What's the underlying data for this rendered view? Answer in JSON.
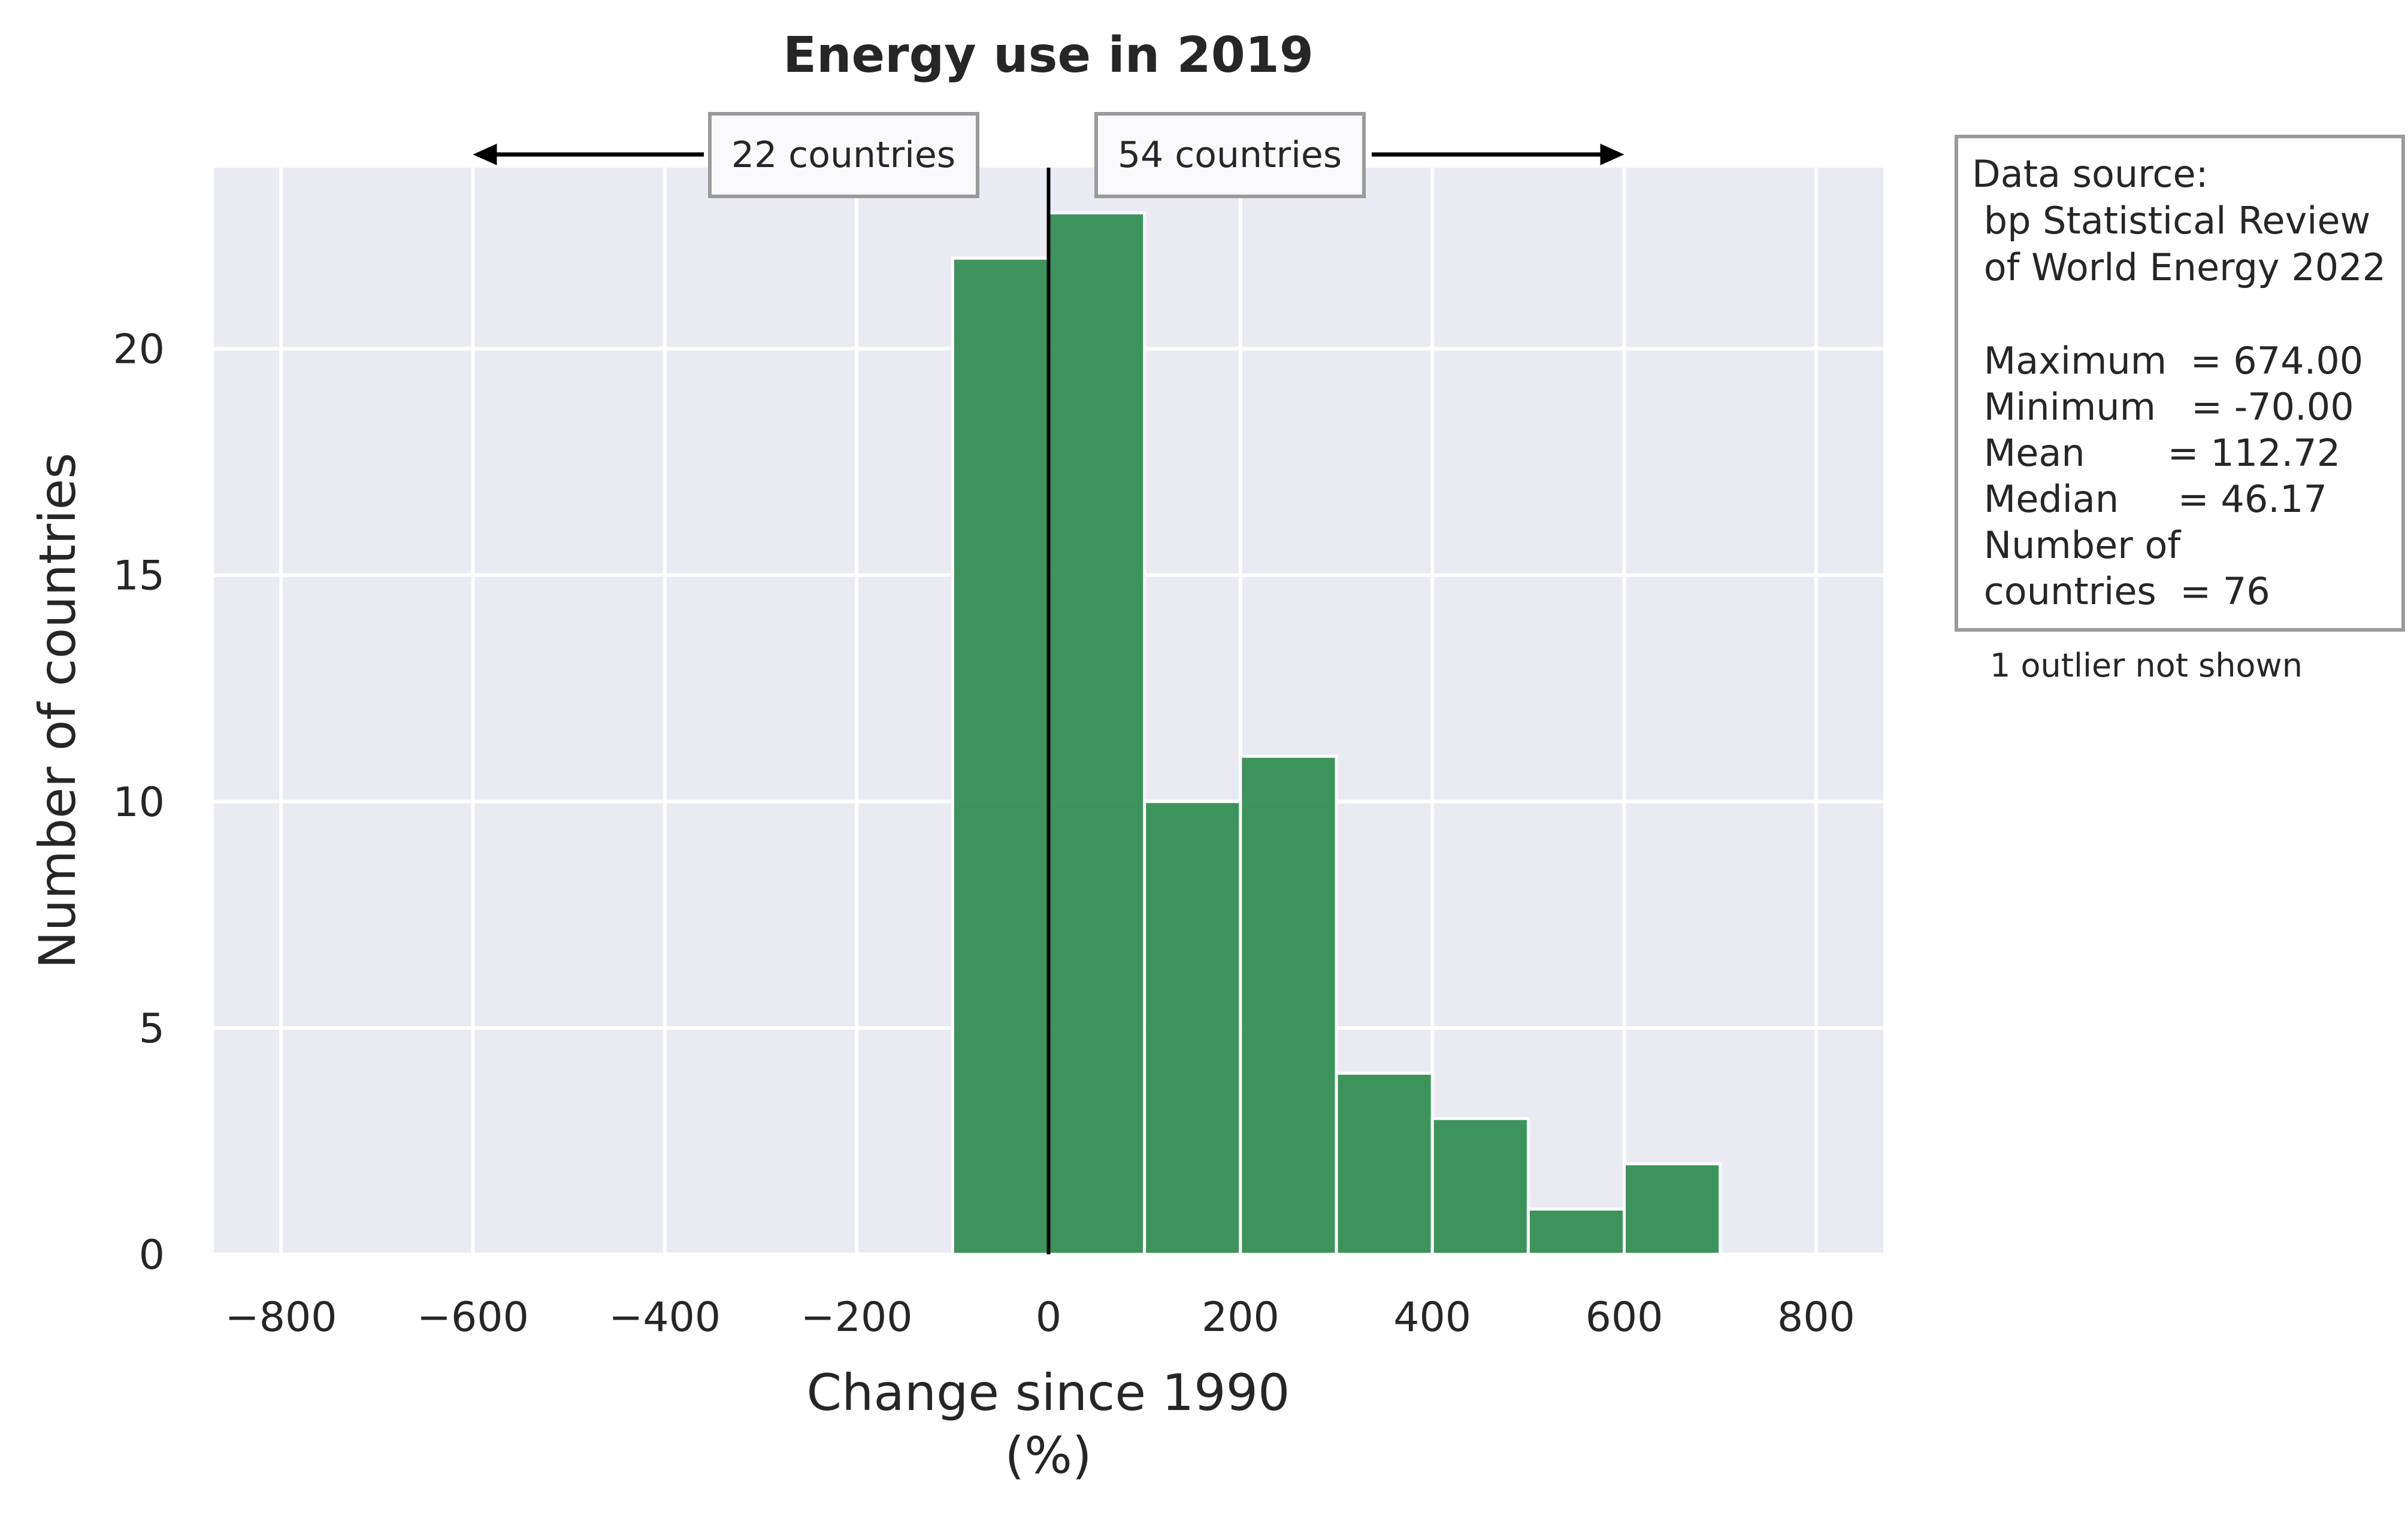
{
  "chart_data": {
    "type": "bar",
    "title": "Energy use in 2019",
    "xlabel": "Change since 1990",
    "xlabel_unit": "(%)",
    "ylabel": "Number of countries",
    "xlim": [
      -870,
      870
    ],
    "ylim": [
      0,
      24
    ],
    "xticks": [
      -800,
      -600,
      -400,
      -200,
      0,
      200,
      400,
      600,
      800
    ],
    "xtick_labels": [
      "−800",
      "−600",
      "−400",
      "−200",
      "0",
      "200",
      "400",
      "600",
      "800"
    ],
    "yticks": [
      0,
      5,
      10,
      15,
      20
    ],
    "ytick_labels": [
      "0",
      "5",
      "10",
      "15",
      "20"
    ],
    "grid": true,
    "bins": [
      {
        "x0": -100,
        "x1": 0,
        "count": 22
      },
      {
        "x0": 0,
        "x1": 100,
        "count": 23
      },
      {
        "x0": 100,
        "x1": 200,
        "count": 10
      },
      {
        "x0": 200,
        "x1": 300,
        "count": 11
      },
      {
        "x0": 300,
        "x1": 400,
        "count": 4
      },
      {
        "x0": 400,
        "x1": 500,
        "count": 3
      },
      {
        "x0": 500,
        "x1": 600,
        "count": 1
      },
      {
        "x0": 600,
        "x1": 700,
        "count": 2
      }
    ],
    "vline_x": 0,
    "annotations": {
      "left": {
        "text": "22 countries",
        "arrow_to_x": -600
      },
      "right": {
        "text": "54 countries",
        "arrow_to_x": 600
      }
    },
    "info_box": [
      "Data source:",
      " bp Statistical Review",
      " of World Energy 2022",
      "",
      " Maximum  = 674.00",
      " Minimum   = -70.00",
      " Mean       = 112.72",
      " Median     = 46.17",
      " Number of",
      " countries  = 76"
    ],
    "footnote": "1 outlier not shown",
    "colors": {
      "bar": "#2e8b4f",
      "plot_bg": "#eaeaf2",
      "grid": "#ffffff",
      "vline": "#000000"
    }
  }
}
